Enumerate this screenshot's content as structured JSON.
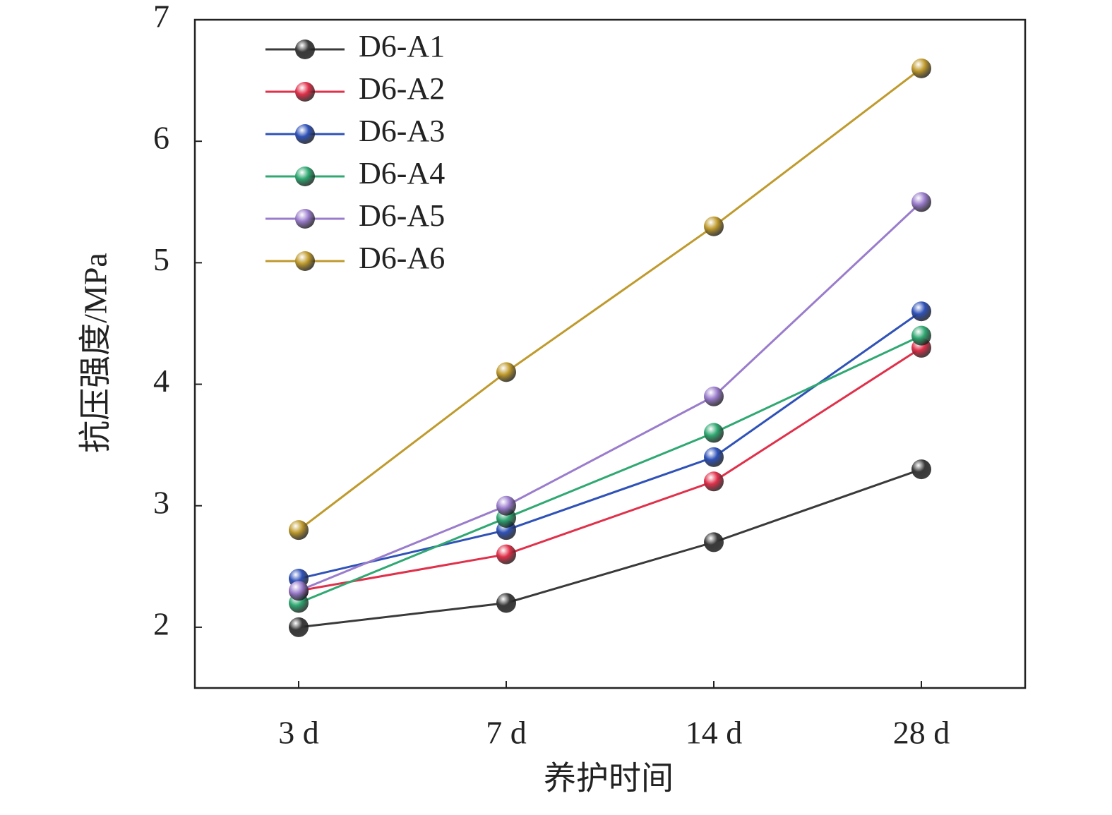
{
  "chart_data": {
    "type": "line",
    "x_label": "养护时间",
    "y_label": "抗压强度/MPa",
    "categories": [
      "3 d",
      "7 d",
      "14 d",
      "28 d"
    ],
    "series": [
      {
        "name": "D6-A1",
        "color": "#3a3a3a",
        "values": [
          2.0,
          2.2,
          2.7,
          3.3
        ]
      },
      {
        "name": "D6-A2",
        "color": "#e0304a",
        "values": [
          2.3,
          2.6,
          3.2,
          4.3
        ]
      },
      {
        "name": "D6-A3",
        "color": "#2f52b8",
        "values": [
          2.4,
          2.8,
          3.4,
          4.6
        ]
      },
      {
        "name": "D6-A4",
        "color": "#2fa872",
        "values": [
          2.2,
          2.9,
          3.6,
          4.4
        ]
      },
      {
        "name": "D6-A5",
        "color": "#9a7ccc",
        "values": [
          2.3,
          3.0,
          3.9,
          5.5
        ]
      },
      {
        "name": "D6-A6",
        "color": "#bf9a2c",
        "values": [
          2.8,
          4.1,
          5.3,
          6.6
        ]
      }
    ],
    "ylim": [
      1.5,
      7
    ],
    "yticks": [
      2,
      3,
      4,
      5,
      6,
      7
    ],
    "grid": false,
    "legend": "upper left"
  }
}
